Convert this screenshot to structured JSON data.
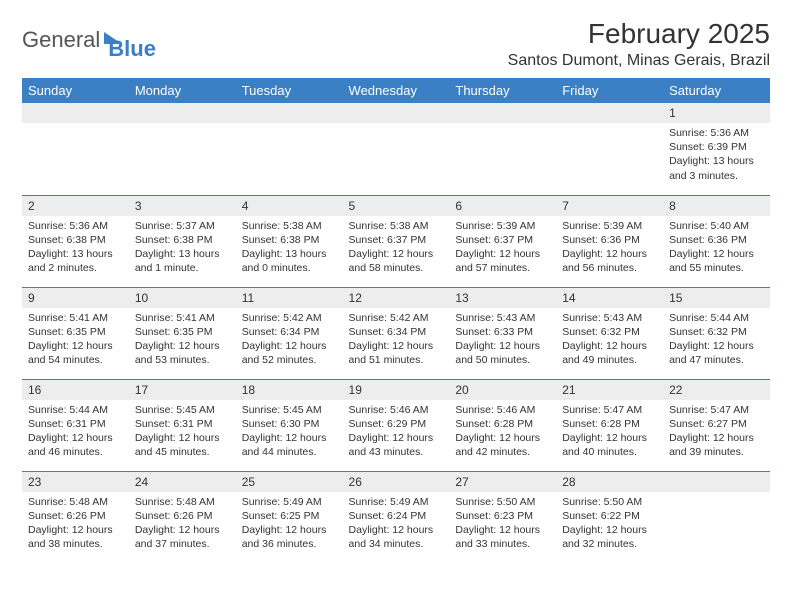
{
  "logo": {
    "text1": "General",
    "text2": "Blue"
  },
  "header": {
    "month_title": "February 2025",
    "location": "Santos Dumont, Minas Gerais, Brazil"
  },
  "weekdays": [
    "Sunday",
    "Monday",
    "Tuesday",
    "Wednesday",
    "Thursday",
    "Friday",
    "Saturday"
  ],
  "weeks": [
    [
      null,
      null,
      null,
      null,
      null,
      null,
      {
        "n": "1",
        "sunrise": "Sunrise: 5:36 AM",
        "sunset": "Sunset: 6:39 PM",
        "daylight": "Daylight: 13 hours and 3 minutes."
      }
    ],
    [
      {
        "n": "2",
        "sunrise": "Sunrise: 5:36 AM",
        "sunset": "Sunset: 6:38 PM",
        "daylight": "Daylight: 13 hours and 2 minutes."
      },
      {
        "n": "3",
        "sunrise": "Sunrise: 5:37 AM",
        "sunset": "Sunset: 6:38 PM",
        "daylight": "Daylight: 13 hours and 1 minute."
      },
      {
        "n": "4",
        "sunrise": "Sunrise: 5:38 AM",
        "sunset": "Sunset: 6:38 PM",
        "daylight": "Daylight: 13 hours and 0 minutes."
      },
      {
        "n": "5",
        "sunrise": "Sunrise: 5:38 AM",
        "sunset": "Sunset: 6:37 PM",
        "daylight": "Daylight: 12 hours and 58 minutes."
      },
      {
        "n": "6",
        "sunrise": "Sunrise: 5:39 AM",
        "sunset": "Sunset: 6:37 PM",
        "daylight": "Daylight: 12 hours and 57 minutes."
      },
      {
        "n": "7",
        "sunrise": "Sunrise: 5:39 AM",
        "sunset": "Sunset: 6:36 PM",
        "daylight": "Daylight: 12 hours and 56 minutes."
      },
      {
        "n": "8",
        "sunrise": "Sunrise: 5:40 AM",
        "sunset": "Sunset: 6:36 PM",
        "daylight": "Daylight: 12 hours and 55 minutes."
      }
    ],
    [
      {
        "n": "9",
        "sunrise": "Sunrise: 5:41 AM",
        "sunset": "Sunset: 6:35 PM",
        "daylight": "Daylight: 12 hours and 54 minutes."
      },
      {
        "n": "10",
        "sunrise": "Sunrise: 5:41 AM",
        "sunset": "Sunset: 6:35 PM",
        "daylight": "Daylight: 12 hours and 53 minutes."
      },
      {
        "n": "11",
        "sunrise": "Sunrise: 5:42 AM",
        "sunset": "Sunset: 6:34 PM",
        "daylight": "Daylight: 12 hours and 52 minutes."
      },
      {
        "n": "12",
        "sunrise": "Sunrise: 5:42 AM",
        "sunset": "Sunset: 6:34 PM",
        "daylight": "Daylight: 12 hours and 51 minutes."
      },
      {
        "n": "13",
        "sunrise": "Sunrise: 5:43 AM",
        "sunset": "Sunset: 6:33 PM",
        "daylight": "Daylight: 12 hours and 50 minutes."
      },
      {
        "n": "14",
        "sunrise": "Sunrise: 5:43 AM",
        "sunset": "Sunset: 6:32 PM",
        "daylight": "Daylight: 12 hours and 49 minutes."
      },
      {
        "n": "15",
        "sunrise": "Sunrise: 5:44 AM",
        "sunset": "Sunset: 6:32 PM",
        "daylight": "Daylight: 12 hours and 47 minutes."
      }
    ],
    [
      {
        "n": "16",
        "sunrise": "Sunrise: 5:44 AM",
        "sunset": "Sunset: 6:31 PM",
        "daylight": "Daylight: 12 hours and 46 minutes."
      },
      {
        "n": "17",
        "sunrise": "Sunrise: 5:45 AM",
        "sunset": "Sunset: 6:31 PM",
        "daylight": "Daylight: 12 hours and 45 minutes."
      },
      {
        "n": "18",
        "sunrise": "Sunrise: 5:45 AM",
        "sunset": "Sunset: 6:30 PM",
        "daylight": "Daylight: 12 hours and 44 minutes."
      },
      {
        "n": "19",
        "sunrise": "Sunrise: 5:46 AM",
        "sunset": "Sunset: 6:29 PM",
        "daylight": "Daylight: 12 hours and 43 minutes."
      },
      {
        "n": "20",
        "sunrise": "Sunrise: 5:46 AM",
        "sunset": "Sunset: 6:28 PM",
        "daylight": "Daylight: 12 hours and 42 minutes."
      },
      {
        "n": "21",
        "sunrise": "Sunrise: 5:47 AM",
        "sunset": "Sunset: 6:28 PM",
        "daylight": "Daylight: 12 hours and 40 minutes."
      },
      {
        "n": "22",
        "sunrise": "Sunrise: 5:47 AM",
        "sunset": "Sunset: 6:27 PM",
        "daylight": "Daylight: 12 hours and 39 minutes."
      }
    ],
    [
      {
        "n": "23",
        "sunrise": "Sunrise: 5:48 AM",
        "sunset": "Sunset: 6:26 PM",
        "daylight": "Daylight: 12 hours and 38 minutes."
      },
      {
        "n": "24",
        "sunrise": "Sunrise: 5:48 AM",
        "sunset": "Sunset: 6:26 PM",
        "daylight": "Daylight: 12 hours and 37 minutes."
      },
      {
        "n": "25",
        "sunrise": "Sunrise: 5:49 AM",
        "sunset": "Sunset: 6:25 PM",
        "daylight": "Daylight: 12 hours and 36 minutes."
      },
      {
        "n": "26",
        "sunrise": "Sunrise: 5:49 AM",
        "sunset": "Sunset: 6:24 PM",
        "daylight": "Daylight: 12 hours and 34 minutes."
      },
      {
        "n": "27",
        "sunrise": "Sunrise: 5:50 AM",
        "sunset": "Sunset: 6:23 PM",
        "daylight": "Daylight: 12 hours and 33 minutes."
      },
      {
        "n": "28",
        "sunrise": "Sunrise: 5:50 AM",
        "sunset": "Sunset: 6:22 PM",
        "daylight": "Daylight: 12 hours and 32 minutes."
      },
      null
    ]
  ],
  "style": {
    "header_bg": "#3b7fc4",
    "header_text": "#ffffff",
    "daynum_bg": "#ededed",
    "border_color": "#3b7fc4",
    "body_text": "#333333",
    "font_family": "Arial",
    "title_fontsize": 28,
    "location_fontsize": 16,
    "weekday_fontsize": 13,
    "daynum_fontsize": 12,
    "cell_fontsize": 10.5
  }
}
